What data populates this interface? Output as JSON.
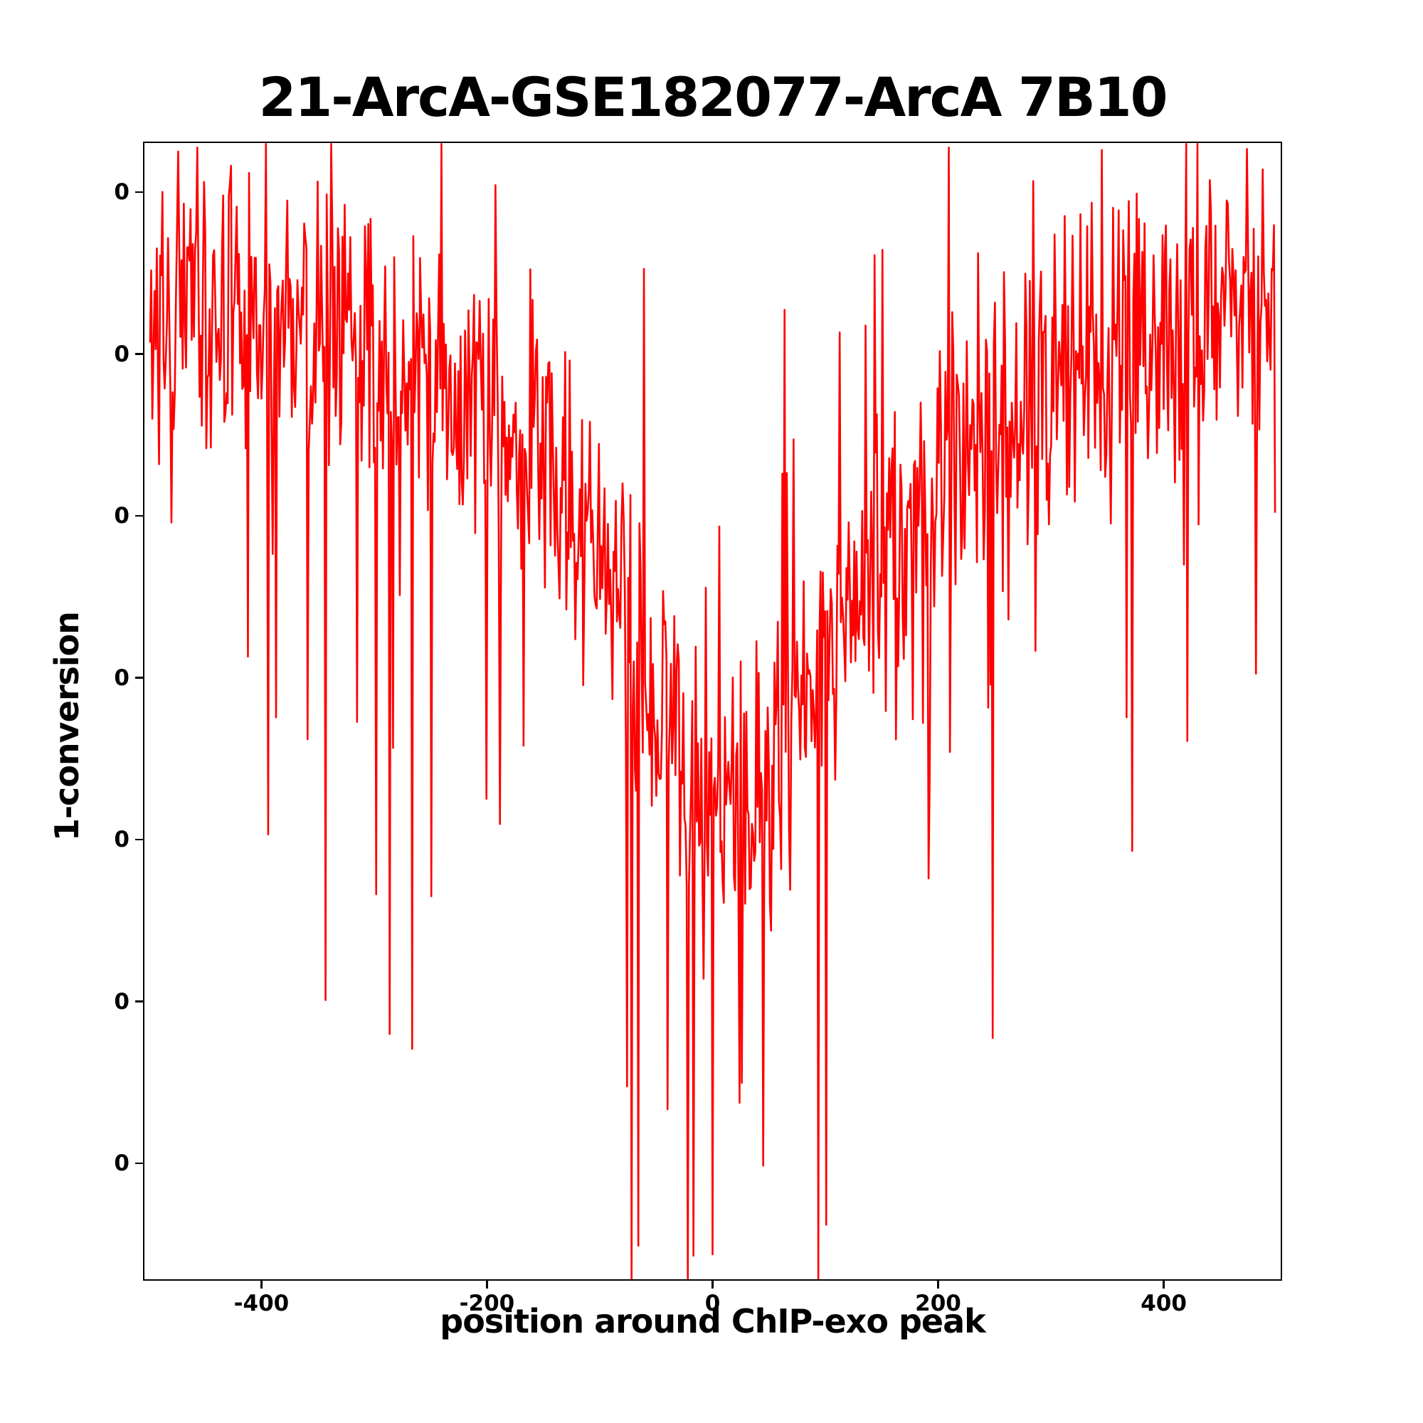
{
  "chart_data": {
    "type": "line",
    "title": "21-ArcA-GSE182077-ArcA 7B10",
    "xlabel": "position around ChIP-exo peak",
    "ylabel": "1-conversion",
    "grid": false,
    "legend": "none",
    "background": "#ffffff",
    "axis_color": "#000000",
    "x_axis": {
      "xlim": [
        -505,
        505
      ],
      "ticks": [
        -400,
        -200,
        0,
        200,
        400
      ],
      "tick_labels": [
        "-400",
        "-200",
        "0",
        "200",
        "400"
      ]
    },
    "y_axis": {
      "tick_labels": [
        "0",
        "0",
        "0",
        "0",
        "0",
        "0",
        "0"
      ],
      "tick_fracs_from_top": [
        0.0443,
        0.1865,
        0.3285,
        0.4707,
        0.6127,
        0.7549,
        0.897
      ]
    },
    "series": [
      {
        "name": "1-conversion",
        "color": "#ff0000",
        "line_width": 2.6,
        "x_start": -500,
        "x_end": 500,
        "x_step": 1
      }
    ],
    "series_model": {
      "description": "Dense noisy signal, high near both edges, dipping to its lowest values around position 0; occasional spikes clipped at the top and bottom spines. Values expressed as fraction-from-top of the axes box.",
      "seed": 20,
      "band_halfwidth": 0.075,
      "down_spike_prob": 0.11,
      "down_spike_scale": 0.9,
      "up_spike_prob": 0.05,
      "up_spike_scale": 0.45,
      "trend_points": [
        [
          -500,
          0.155
        ],
        [
          -440,
          0.15
        ],
        [
          -380,
          0.165
        ],
        [
          -320,
          0.185
        ],
        [
          -260,
          0.215
        ],
        [
          -200,
          0.245
        ],
        [
          -150,
          0.285
        ],
        [
          -100,
          0.36
        ],
        [
          -60,
          0.46
        ],
        [
          -30,
          0.55
        ],
        [
          0,
          0.6
        ],
        [
          30,
          0.59
        ],
        [
          60,
          0.55
        ],
        [
          100,
          0.46
        ],
        [
          140,
          0.38
        ],
        [
          190,
          0.3
        ],
        [
          250,
          0.25
        ],
        [
          310,
          0.2
        ],
        [
          380,
          0.165
        ],
        [
          440,
          0.145
        ],
        [
          500,
          0.125
        ]
      ],
      "spikes": [
        [
          -458,
          0.004
        ],
        [
          -428,
          0.02
        ],
        [
          -266,
          0.082
        ],
        [
          -160,
          0.138
        ],
        [
          -72,
          1.0
        ],
        [
          0,
          0.978
        ],
        [
          45,
          0.9
        ],
        [
          101,
          0.952
        ],
        [
          210,
          0.004
        ],
        [
          356,
          0.057
        ],
        [
          431,
          0.0
        ]
      ]
    }
  }
}
